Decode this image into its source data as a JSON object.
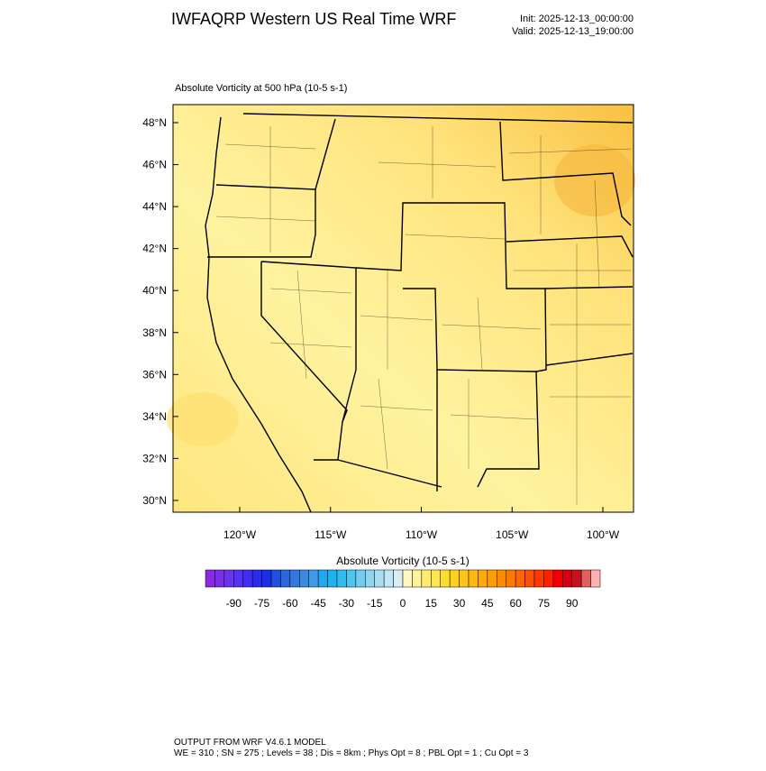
{
  "header": {
    "title": "IWFAQRP Western US Real Time WRF",
    "init": "Init: 2025-12-13_00:00:00",
    "valid": "Valid: 2025-12-13_19:00:00"
  },
  "map": {
    "subtitle": "Absolute Vorticity at 500 hPa   (10-5 s-1)",
    "lat_labels": [
      "48°N",
      "46°N",
      "44°N",
      "42°N",
      "40°N",
      "38°N",
      "36°N",
      "34°N",
      "32°N",
      "30°N"
    ],
    "lon_labels": [
      "120°W",
      "115°W",
      "110°W",
      "105°W",
      "100°W"
    ]
  },
  "colorbar": {
    "title": "Absolute Vorticity  (10-5 s-1)",
    "labels": [
      "-90",
      "-75",
      "-60",
      "-45",
      "-30",
      "-15",
      "0",
      "15",
      "30",
      "45",
      "60",
      "75",
      "90"
    ],
    "colors": [
      "#8a2be2",
      "#7b2ee8",
      "#6a33f0",
      "#5533f5",
      "#3f2ff5",
      "#2a2af0",
      "#1a30e8",
      "#2050e0",
      "#2a66e0",
      "#3378e0",
      "#3a8ae0",
      "#3f9be6",
      "#20a8f0",
      "#1fb2f0",
      "#30bdf0",
      "#50c4f0",
      "#70ccf0",
      "#8fd4f0",
      "#a8ddf2",
      "#c0e6f4",
      "#d8eef6",
      "#fff8c0",
      "#fff39a",
      "#ffec70",
      "#ffe550",
      "#ffdc30",
      "#ffd020",
      "#ffc418",
      "#ffb810",
      "#ffaa08",
      "#ff9c00",
      "#ff8c00",
      "#ff7a00",
      "#ff6600",
      "#ff5000",
      "#ff3a00",
      "#ff2000",
      "#f00000",
      "#d80010",
      "#c81020",
      "#e06060",
      "#ffb0b0"
    ]
  },
  "footer": {
    "line1": "OUTPUT FROM WRF V4.6.1 MODEL",
    "line2": "WE = 310 ; SN = 275 ; Levels = 38 ; Dis = 8km ; Phys Opt = 8 ; PBL Opt = 1 ; Cu Opt = 3"
  }
}
